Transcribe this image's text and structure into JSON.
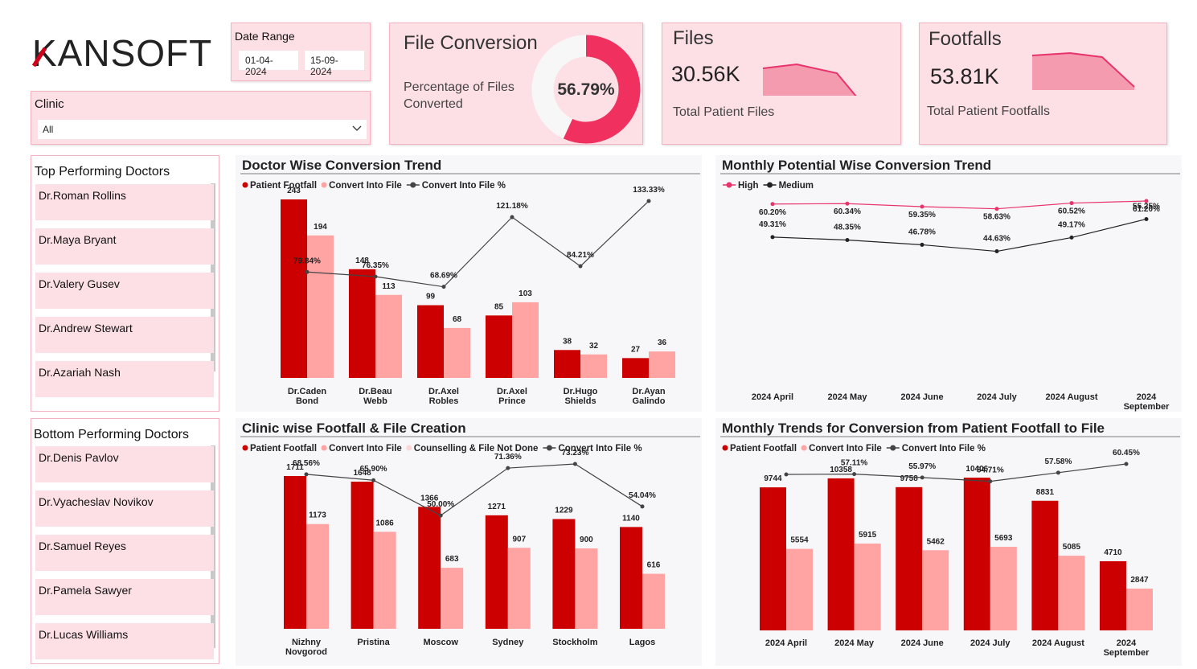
{
  "logo": "KANSOFT",
  "date_range": {
    "label": "Date Range",
    "start": "01-04-2024",
    "end": "15-09-2024"
  },
  "clinic": {
    "label": "Clinic",
    "selected": "All"
  },
  "file_conversion": {
    "title": "File Conversion",
    "subtitle": "Percentage of Files Converted",
    "value": 56.79,
    "value_label": "56.79%"
  },
  "files": {
    "title": "Files",
    "value": "30.56K",
    "caption": "Total Patient Files"
  },
  "footfalls": {
    "title": "Footfalls",
    "value": "53.81K",
    "caption": "Total Patient Footfalls"
  },
  "top_doctors": {
    "title": "Top Performing Doctors",
    "items": [
      "Dr.Roman Rollins",
      "Dr.Maya Bryant",
      "Dr.Valery Gusev",
      "Dr.Andrew Stewart",
      "Dr.Azariah Nash"
    ]
  },
  "bottom_doctors": {
    "title": "Bottom Performing Doctors",
    "items": [
      "Dr.Denis Pavlov",
      "Dr.Vyacheslav Novikov",
      "Dr.Samuel Reyes",
      "Dr.Pamela Sawyer",
      "Dr.Lucas Williams"
    ]
  },
  "chart_data": [
    {
      "type": "combo",
      "title": "Doctor Wise Conversion Trend",
      "categories": [
        "Dr.Caden Bond",
        "Dr.Beau Webb",
        "Dr.Axel Robles",
        "Dr.Axel Prince",
        "Dr.Hugo Shields",
        "Dr.Ayan Galindo"
      ],
      "series": [
        {
          "name": "Patient Footfall",
          "color": "#cc0000",
          "values": [
            243,
            148,
            99,
            85,
            38,
            27
          ]
        },
        {
          "name": "Convert Into File",
          "color": "#ffa3a3",
          "values": [
            194,
            113,
            68,
            103,
            32,
            36
          ]
        },
        {
          "name": "Convert Into File %",
          "color": "#444444",
          "axis": "y2",
          "values": [
            79.84,
            76.35,
            68.69,
            121.18,
            84.21,
            133.33
          ],
          "value_labels": [
            "79.84%",
            "76.35%",
            "68.69%",
            "121.18%",
            "84.21%",
            "133.33%"
          ]
        }
      ]
    },
    {
      "type": "line",
      "title": "Monthly Potential Wise Conversion Trend",
      "categories": [
        "2024 April",
        "2024 May",
        "2024 June",
        "2024 July",
        "2024 August",
        "2024 September"
      ],
      "series": [
        {
          "name": "High",
          "color": "#e8336b",
          "values": [
            60.2,
            60.34,
            59.35,
            58.63,
            60.52,
            61.2
          ],
          "value_labels": [
            "60.20%",
            "60.34%",
            "59.35%",
            "58.63%",
            "60.52%",
            "61.20%"
          ]
        },
        {
          "name": "Medium",
          "color": "#222222",
          "values": [
            49.31,
            48.35,
            46.78,
            44.63,
            49.17,
            55.25
          ],
          "value_labels": [
            "49.31%",
            "48.35%",
            "46.78%",
            "44.63%",
            "49.17%",
            "55.25%"
          ]
        }
      ]
    },
    {
      "type": "combo",
      "title": "Clinic wise Footfall & File Creation",
      "categories": [
        "Nizhny Novgorod",
        "Pristina",
        "Moscow",
        "Sydney",
        "Stockholm",
        "Lagos"
      ],
      "series": [
        {
          "name": "Patient Footfall",
          "color": "#cc0000",
          "values": [
            1711,
            1648,
            1366,
            1271,
            1229,
            1140
          ]
        },
        {
          "name": "Convert Into File",
          "color": "#ffa3a3",
          "values": [
            1173,
            1086,
            683,
            907,
            900,
            616
          ]
        },
        {
          "name": "Counselling & File Not Done",
          "color": "#ffd6d6",
          "values": [
            null,
            null,
            null,
            null,
            null,
            null
          ]
        },
        {
          "name": "Convert Into File %",
          "color": "#444444",
          "axis": "y2",
          "values": [
            68.56,
            65.9,
            50.0,
            71.36,
            73.23,
            54.04
          ],
          "value_labels": [
            "68.56%",
            "65.90%",
            "50.00%",
            "71.36%",
            "73.23%",
            "54.04%"
          ]
        }
      ]
    },
    {
      "type": "combo",
      "title": "Monthly Trends for Conversion from Patient Footfall to File",
      "categories": [
        "2024 April",
        "2024 May",
        "2024 June",
        "2024 July",
        "2024 August",
        "2024 September"
      ],
      "series": [
        {
          "name": "Patient Footfall",
          "color": "#cc0000",
          "values": [
            9744,
            10358,
            9758,
            10406,
            8831,
            4710
          ]
        },
        {
          "name": "Convert Into File",
          "color": "#ffa3a3",
          "values": [
            5554,
            5915,
            5462,
            5693,
            5085,
            2847
          ]
        },
        {
          "name": "Convert Into File %",
          "color": "#444444",
          "axis": "y2",
          "values": [
            57.0,
            57.11,
            55.97,
            54.71,
            57.58,
            60.45
          ],
          "value_labels": [
            null,
            "57.11%",
            "55.97%",
            "54.71%",
            "57.58%",
            "60.45%"
          ]
        }
      ]
    }
  ]
}
